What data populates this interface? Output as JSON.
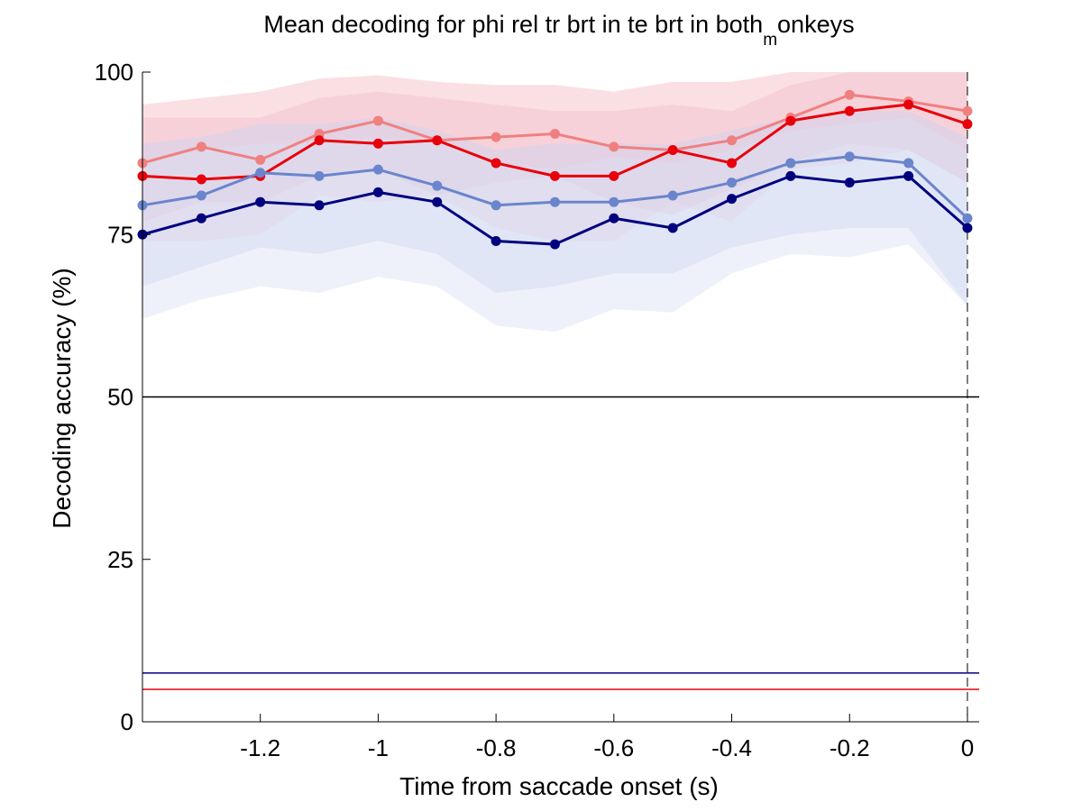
{
  "chart_data": {
    "type": "line",
    "title_main": "Mean decoding for phi rel tr brt in te brt in  both",
    "title_sub": "m",
    "title_tail": "onkeys",
    "xlabel": "Time from saccade onset (s)",
    "ylabel": "Decoding accuracy (%)",
    "xlim": [
      -1.4,
      0.02
    ],
    "ylim": [
      0,
      100
    ],
    "xticks": [
      -1.2,
      -1,
      -0.8,
      -0.6,
      -0.4,
      -0.2,
      0
    ],
    "xtick_labels": [
      "-1.2",
      "-1",
      "-0.8",
      "-0.6",
      "-0.4",
      "-0.2",
      "0"
    ],
    "yticks": [
      0,
      25,
      50,
      75,
      100
    ],
    "ytick_labels": [
      "0",
      "25",
      "50",
      "75",
      "100"
    ],
    "x": [
      -1.4,
      -1.3,
      -1.2,
      -1.1,
      -1.0,
      -0.9,
      -0.8,
      -0.7,
      -0.6,
      -0.5,
      -0.4,
      -0.3,
      -0.2,
      -0.1,
      0.0
    ],
    "series": [
      {
        "color": "#f08080",
        "band_color": "#f5b8c2",
        "values": [
          86,
          88.5,
          86.5,
          90.5,
          92.5,
          89.5,
          90,
          90.5,
          88.5,
          88,
          89.5,
          93,
          96.5,
          95.5,
          94
        ],
        "band_upper": [
          95,
          96,
          97,
          99,
          99.5,
          98.5,
          98,
          98,
          97,
          98.5,
          98.5,
          100,
          100,
          100,
          100
        ],
        "band_lower": [
          77,
          80,
          80,
          84,
          85,
          81,
          83,
          84,
          80,
          78,
          82,
          86,
          89,
          88,
          83
        ]
      },
      {
        "color": "#e8000b",
        "band_color": "#f5c2cc",
        "values": [
          84,
          83.5,
          84,
          89.5,
          89,
          89.5,
          86,
          84,
          84,
          88,
          86,
          92.5,
          94,
          95,
          92
        ],
        "band_upper": [
          93,
          93,
          93,
          96,
          97,
          96,
          95,
          94,
          94,
          95,
          94,
          98,
          100,
          100,
          100
        ],
        "band_lower": [
          74,
          74,
          75,
          81,
          80,
          81,
          76,
          74,
          74,
          80,
          77,
          85,
          86,
          88,
          83
        ]
      },
      {
        "color": "#6a85cc",
        "band_color": "#c8d2f0",
        "values": [
          79.5,
          81,
          84.5,
          84,
          85,
          82.5,
          79.5,
          80,
          80,
          81,
          83,
          86,
          87,
          86,
          77.5
        ],
        "band_upper": [
          89,
          90,
          92,
          92,
          93,
          91,
          88,
          89,
          89,
          89,
          91,
          93,
          94,
          94,
          90
        ],
        "band_lower": [
          67,
          70,
          73,
          72,
          74,
          72,
          66,
          67,
          69,
          69,
          73,
          75,
          76,
          76,
          64
        ]
      },
      {
        "color": "#00007f",
        "band_color": "#dcdff5",
        "values": [
          75,
          77.5,
          80,
          79.5,
          81.5,
          80,
          74,
          73.5,
          77.5,
          76,
          80.5,
          84,
          83,
          84,
          76
        ],
        "band_upper": [
          86,
          88,
          89,
          89,
          90,
          89,
          86,
          85,
          87,
          86,
          88,
          91,
          92,
          93,
          88
        ],
        "band_lower": [
          62,
          65,
          67,
          66,
          68.5,
          67,
          61,
          60,
          63.5,
          63,
          69,
          72,
          71.5,
          73.5,
          64
        ]
      }
    ],
    "reference_lines": [
      {
        "y": 50,
        "color": "#000000"
      },
      {
        "y": 7.5,
        "color": "#00007f"
      },
      {
        "y": 5,
        "color": "#e8000b"
      }
    ],
    "vertical_marker": {
      "x": 0,
      "style": "dashed",
      "color": "#000000"
    },
    "grid": false,
    "legend": "none"
  }
}
